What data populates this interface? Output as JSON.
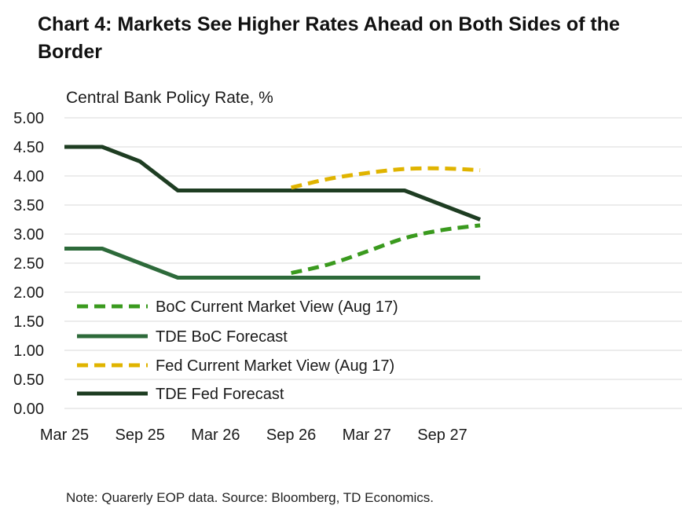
{
  "chart_data": {
    "type": "line",
    "title": "Chart 4: Markets See Higher Rates Ahead on Both Sides of the Border",
    "ylabel": "Central Bank Policy Rate, %",
    "note": "Note: Quarerly EOP data. Source: Bloomberg, TD Economics.",
    "ylim": [
      0,
      5
    ],
    "y_ticks": [
      "5.00",
      "4.50",
      "4.00",
      "3.50",
      "3.00",
      "2.50",
      "2.00",
      "1.50",
      "1.00",
      "0.50",
      "0.00"
    ],
    "x_ticks": [
      "Mar 25",
      "Sep 25",
      "Mar 26",
      "Sep 26",
      "Mar 27",
      "Sep 27"
    ],
    "categories": [
      "Mar 25",
      "Jun 25",
      "Sep 25",
      "Dec 25",
      "Mar 26",
      "Jun 26",
      "Sep 26",
      "Dec 26",
      "Mar 27",
      "Jun 27",
      "Sep 27",
      "Dec 27"
    ],
    "grid": "horizontal",
    "legend": "lower-left",
    "series": [
      {
        "name": "BoC Current Market View (Aug 17)",
        "style": "dashed",
        "color": "#3a9a1e",
        "values": [
          null,
          null,
          null,
          null,
          null,
          null,
          2.33,
          2.48,
          2.7,
          2.93,
          3.07,
          3.15
        ]
      },
      {
        "name": "TDE BoC Forecast",
        "style": "solid",
        "color": "#2d6a3a",
        "values": [
          2.75,
          2.75,
          2.5,
          2.25,
          2.25,
          2.25,
          2.25,
          2.25,
          2.25,
          2.25,
          2.25,
          2.25
        ]
      },
      {
        "name": "Fed Current Market View (Aug 17)",
        "style": "dashed",
        "color": "#e0b400",
        "values": [
          null,
          null,
          null,
          null,
          null,
          null,
          3.8,
          3.95,
          4.05,
          4.12,
          4.13,
          4.1
        ]
      },
      {
        "name": "TDE Fed Forecast",
        "style": "solid",
        "color": "#1e3d22",
        "values": [
          4.5,
          4.5,
          4.25,
          3.75,
          3.75,
          3.75,
          3.75,
          3.75,
          3.75,
          3.75,
          3.5,
          3.25
        ]
      }
    ]
  }
}
